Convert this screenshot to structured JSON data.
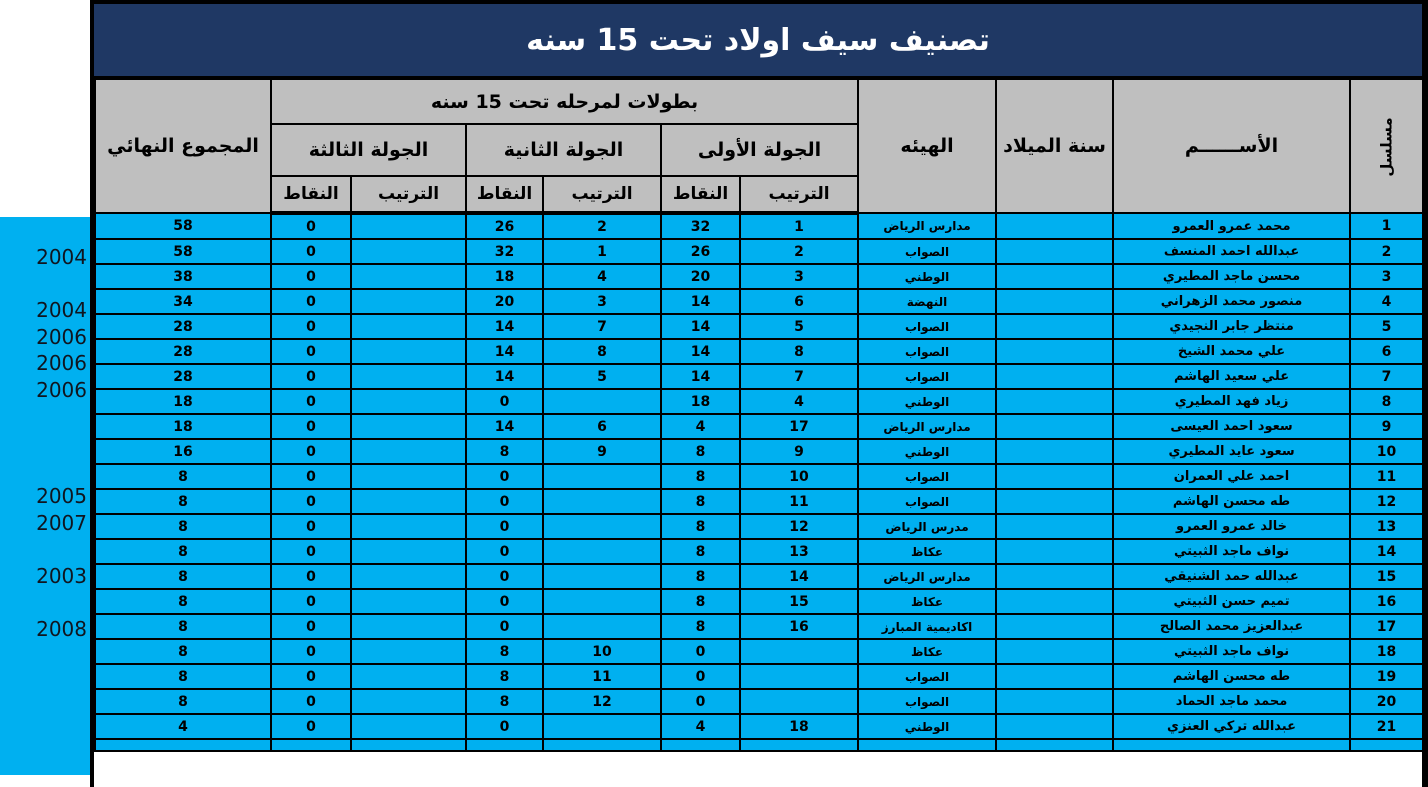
{
  "title": "تصنيف سيف اولاد تحت 15 سنه",
  "colors": {
    "title_bg": "#1F3864",
    "title_text": "#FFFFFF",
    "header_bg": "#BFBFBF",
    "row_bg": "#00B0F0",
    "side_strip_bg": "#00B0F0",
    "border": "#000000"
  },
  "header": {
    "serial": "مسلسل",
    "name": "الأســــــم",
    "birth_year": "سنة الميلاد",
    "org": "الهيئه",
    "championships_group": "بطولات لمرحله تحت 15 سنه",
    "round1": "الجولة الأولى",
    "round2": "الجولة الثانية",
    "round3": "الجولة الثالثة",
    "rank": "الترتيب",
    "points": "النقاط",
    "total": "المجموع النهائي"
  },
  "rows": [
    {
      "serial": "1",
      "name": "محمد عمرو العمرو",
      "birth_year": "",
      "org": "مدارس الرياض",
      "r1_rank": "1",
      "r1_points": "32",
      "r2_rank": "2",
      "r2_points": "26",
      "r3_rank": "",
      "r3_points": "0",
      "total": "58",
      "side_year": ""
    },
    {
      "serial": "2",
      "name": "عبدالله احمد المنسف",
      "birth_year": "",
      "org": "الصواب",
      "r1_rank": "2",
      "r1_points": "26",
      "r2_rank": "1",
      "r2_points": "32",
      "r3_rank": "",
      "r3_points": "0",
      "total": "58",
      "side_year": "2004"
    },
    {
      "serial": "3",
      "name": "محسن ماجد المطيري",
      "birth_year": "",
      "org": "الوطني",
      "r1_rank": "3",
      "r1_points": "20",
      "r2_rank": "4",
      "r2_points": "18",
      "r3_rank": "",
      "r3_points": "0",
      "total": "38",
      "side_year": ""
    },
    {
      "serial": "4",
      "name": "منصور محمد الزهراني",
      "birth_year": "",
      "org": "النهضة",
      "r1_rank": "6",
      "r1_points": "14",
      "r2_rank": "3",
      "r2_points": "20",
      "r3_rank": "",
      "r3_points": "0",
      "total": "34",
      "side_year": "2004"
    },
    {
      "serial": "5",
      "name": "منتظر جابر النجيدي",
      "birth_year": "",
      "org": "الصواب",
      "r1_rank": "5",
      "r1_points": "14",
      "r2_rank": "7",
      "r2_points": "14",
      "r3_rank": "",
      "r3_points": "0",
      "total": "28",
      "side_year": "2006"
    },
    {
      "serial": "6",
      "name": "علي محمد الشيخ",
      "birth_year": "",
      "org": "الصواب",
      "r1_rank": "8",
      "r1_points": "14",
      "r2_rank": "8",
      "r2_points": "14",
      "r3_rank": "",
      "r3_points": "0",
      "total": "28",
      "side_year": "2006"
    },
    {
      "serial": "7",
      "name": "علي سعيد الهاشم",
      "birth_year": "",
      "org": "الصواب",
      "r1_rank": "7",
      "r1_points": "14",
      "r2_rank": "5",
      "r2_points": "14",
      "r3_rank": "",
      "r3_points": "0",
      "total": "28",
      "side_year": "2006"
    },
    {
      "serial": "8",
      "name": "زياد فهد المطيري",
      "birth_year": "",
      "org": "الوطني",
      "r1_rank": "4",
      "r1_points": "18",
      "r2_rank": "",
      "r2_points": "0",
      "r3_rank": "",
      "r3_points": "0",
      "total": "18",
      "side_year": ""
    },
    {
      "serial": "9",
      "name": "سعود احمد العيسى",
      "birth_year": "",
      "org": "مدارس الرياض",
      "r1_rank": "17",
      "r1_points": "4",
      "r2_rank": "6",
      "r2_points": "14",
      "r3_rank": "",
      "r3_points": "0",
      "total": "18",
      "side_year": ""
    },
    {
      "serial": "10",
      "name": "سعود عايد المطيري",
      "birth_year": "",
      "org": "الوطني",
      "r1_rank": "9",
      "r1_points": "8",
      "r2_rank": "9",
      "r2_points": "8",
      "r3_rank": "",
      "r3_points": "0",
      "total": "16",
      "side_year": ""
    },
    {
      "serial": "11",
      "name": "احمد علي العمران",
      "birth_year": "",
      "org": "الصواب",
      "r1_rank": "10",
      "r1_points": "8",
      "r2_rank": "",
      "r2_points": "0",
      "r3_rank": "",
      "r3_points": "0",
      "total": "8",
      "side_year": "2005"
    },
    {
      "serial": "12",
      "name": "طه محسن الهاشم",
      "birth_year": "",
      "org": "الصواب",
      "r1_rank": "11",
      "r1_points": "8",
      "r2_rank": "",
      "r2_points": "0",
      "r3_rank": "",
      "r3_points": "0",
      "total": "8",
      "side_year": "2007"
    },
    {
      "serial": "13",
      "name": "خالد عمرو العمرو",
      "birth_year": "",
      "org": "مدرس الرياض",
      "r1_rank": "12",
      "r1_points": "8",
      "r2_rank": "",
      "r2_points": "0",
      "r3_rank": "",
      "r3_points": "0",
      "total": "8",
      "side_year": ""
    },
    {
      "serial": "14",
      "name": "نواف ماجد الثبيتي",
      "birth_year": "",
      "org": "عكاظ",
      "r1_rank": "13",
      "r1_points": "8",
      "r2_rank": "",
      "r2_points": "0",
      "r3_rank": "",
      "r3_points": "0",
      "total": "8",
      "side_year": "2003"
    },
    {
      "serial": "15",
      "name": "عبدالله حمد الشنيقي",
      "birth_year": "",
      "org": "مدارس الرياض",
      "r1_rank": "14",
      "r1_points": "8",
      "r2_rank": "",
      "r2_points": "0",
      "r3_rank": "",
      "r3_points": "0",
      "total": "8",
      "side_year": ""
    },
    {
      "serial": "16",
      "name": "تميم حسن الثبيتي",
      "birth_year": "",
      "org": "عكاظ",
      "r1_rank": "15",
      "r1_points": "8",
      "r2_rank": "",
      "r2_points": "0",
      "r3_rank": "",
      "r3_points": "0",
      "total": "8",
      "side_year": "2008"
    },
    {
      "serial": "17",
      "name": "عبدالعزيز محمد الصالح",
      "birth_year": "",
      "org": "اكاديمية المبارز",
      "r1_rank": "16",
      "r1_points": "8",
      "r2_rank": "",
      "r2_points": "0",
      "r3_rank": "",
      "r3_points": "0",
      "total": "8",
      "side_year": ""
    },
    {
      "serial": "18",
      "name": "نواف ماجد الثبيتي",
      "birth_year": "",
      "org": "عكاظ",
      "r1_rank": "",
      "r1_points": "0",
      "r2_rank": "10",
      "r2_points": "8",
      "r3_rank": "",
      "r3_points": "0",
      "total": "8",
      "side_year": ""
    },
    {
      "serial": "19",
      "name": "طه محسن الهاشم",
      "birth_year": "",
      "org": "الصواب",
      "r1_rank": "",
      "r1_points": "0",
      "r2_rank": "11",
      "r2_points": "8",
      "r3_rank": "",
      "r3_points": "0",
      "total": "8",
      "side_year": ""
    },
    {
      "serial": "20",
      "name": "محمد ماجد الحماد",
      "birth_year": "",
      "org": "الصواب",
      "r1_rank": "",
      "r1_points": "0",
      "r2_rank": "12",
      "r2_points": "8",
      "r3_rank": "",
      "r3_points": "0",
      "total": "8",
      "side_year": ""
    },
    {
      "serial": "21",
      "name": "عبدالله تركي العنزي",
      "birth_year": "",
      "org": "الوطني",
      "r1_rank": "18",
      "r1_points": "4",
      "r2_rank": "",
      "r2_points": "0",
      "r3_rank": "",
      "r3_points": "0",
      "total": "4",
      "side_year": ""
    }
  ]
}
